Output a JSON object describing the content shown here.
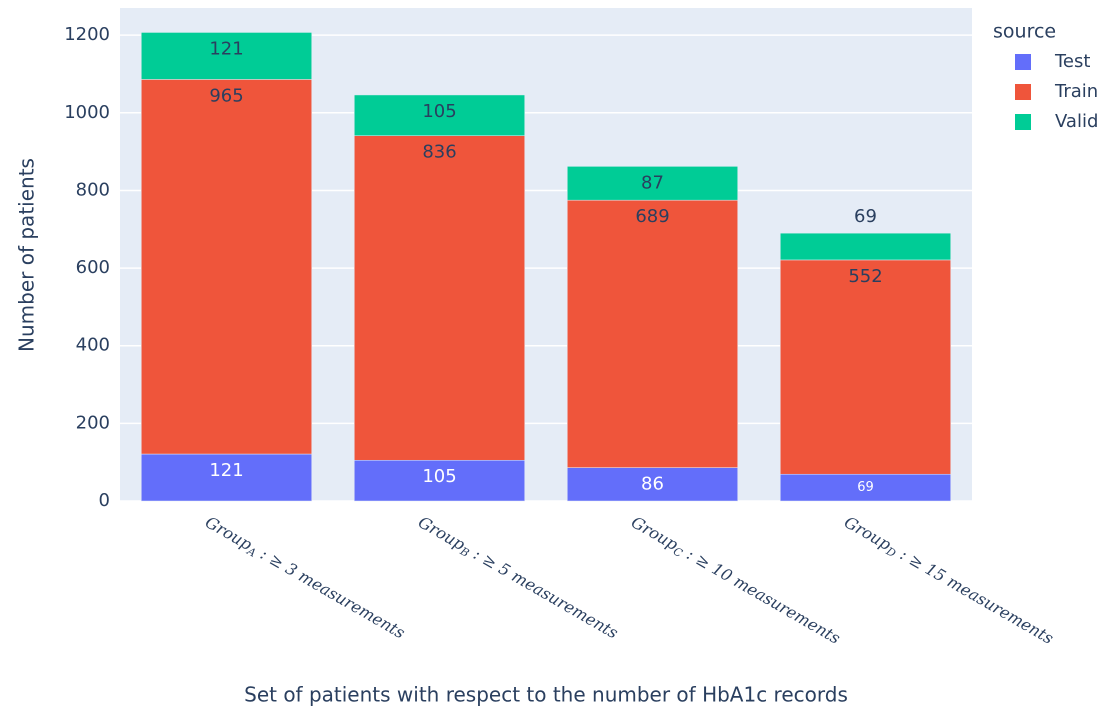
{
  "chart_data": {
    "type": "bar",
    "stacked": true,
    "x_label": "Set of patients with respect to the number of HbA1c records",
    "y_label": "Number of patients",
    "legend_title": "source",
    "categories": [
      "GroupA : ≥ 3 measurements",
      "GroupB : ≥ 5 measurements",
      "GroupC : ≥ 10 measurements",
      "GroupD : ≥ 15 measurements"
    ],
    "series": [
      {
        "name": "Test",
        "color": "#636efa",
        "values": [
          121,
          105,
          86,
          69
        ]
      },
      {
        "name": "Train",
        "color": "#ef553b",
        "values": [
          965,
          836,
          689,
          552
        ]
      },
      {
        "name": "Valid",
        "color": "#00cc96",
        "values": [
          121,
          105,
          87,
          69
        ]
      }
    ],
    "ylim": [
      0,
      1270
    ],
    "yticks": [
      0,
      200,
      400,
      600,
      800,
      1000,
      1200
    ],
    "grid": true
  }
}
